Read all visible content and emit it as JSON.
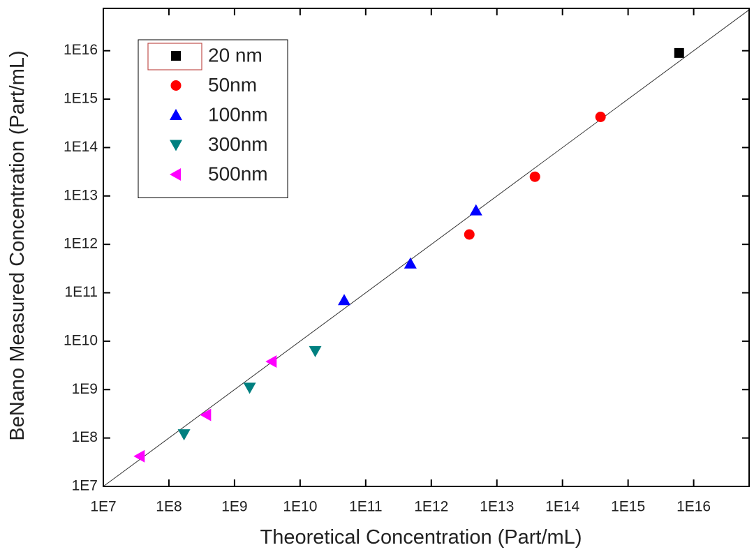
{
  "chart_data": {
    "type": "scatter",
    "x_label": "Theoretical Concentration (Part/mL)",
    "y_label": "BeNano Measured Concentration (Part/mL)",
    "xscale": "log",
    "yscale": "log",
    "xlim": [
      10000000.0,
      7e+16
    ],
    "ylim": [
      10000000.0,
      7.5e+16
    ],
    "xticks": [
      {
        "value": 10000000.0,
        "label": "1E7"
      },
      {
        "value": 100000000.0,
        "label": "1E8"
      },
      {
        "value": 1000000000.0,
        "label": "1E9"
      },
      {
        "value": 10000000000.0,
        "label": "1E10"
      },
      {
        "value": 100000000000.0,
        "label": "1E11"
      },
      {
        "value": 1000000000000.0,
        "label": "1E12"
      },
      {
        "value": 10000000000000.0,
        "label": "1E13"
      },
      {
        "value": 100000000000000.0,
        "label": "1E14"
      },
      {
        "value": 1000000000000000.0,
        "label": "1E15"
      },
      {
        "value": 1e+16,
        "label": "1E16"
      }
    ],
    "yticks": [
      {
        "value": 10000000.0,
        "label": "1E7"
      },
      {
        "value": 100000000.0,
        "label": "1E8"
      },
      {
        "value": 1000000000.0,
        "label": "1E9"
      },
      {
        "value": 10000000000.0,
        "label": "1E10"
      },
      {
        "value": 100000000000.0,
        "label": "1E11"
      },
      {
        "value": 1000000000000.0,
        "label": "1E12"
      },
      {
        "value": 10000000000000.0,
        "label": "1E13"
      },
      {
        "value": 100000000000000.0,
        "label": "1E14"
      },
      {
        "value": 1000000000000000.0,
        "label": "1E15"
      },
      {
        "value": 1e+16,
        "label": "1E16"
      }
    ],
    "legend": "upper left",
    "series": [
      {
        "name": "20 nm",
        "color": "#000000",
        "marker": "square",
        "x": [
          6000000000000000.0
        ],
        "y": [
          9000000000000000.0
        ]
      },
      {
        "name": "50nm",
        "color": "#ff0000",
        "marker": "circle",
        "x": [
          380000000000000.0,
          38000000000000.0,
          3800000000000.0
        ],
        "y": [
          430000000000000.0,
          25000000000000.0,
          1600000000000.0
        ]
      },
      {
        "name": "100nm",
        "color": "#0000ff",
        "marker": "triangle-up",
        "x": [
          4800000000000.0,
          480000000000.0,
          47000000000.0
        ],
        "y": [
          5000000000000.0,
          400000000000.0,
          70000000000.0
        ]
      },
      {
        "name": "300nm",
        "color": "#008080",
        "marker": "triangle-down",
        "x": [
          17000000000.0,
          1700000000.0,
          170000000.0
        ],
        "y": [
          6300000000.0,
          1100000000.0,
          120000000.0
        ]
      },
      {
        "name": "500nm",
        "color": "#ff00ff",
        "marker": "triangle-left",
        "x": [
          3700000000.0,
          370000000.0,
          36000000.0
        ],
        "y": [
          3800000000.0,
          300000000.0,
          42000000.0
        ]
      }
    ]
  }
}
